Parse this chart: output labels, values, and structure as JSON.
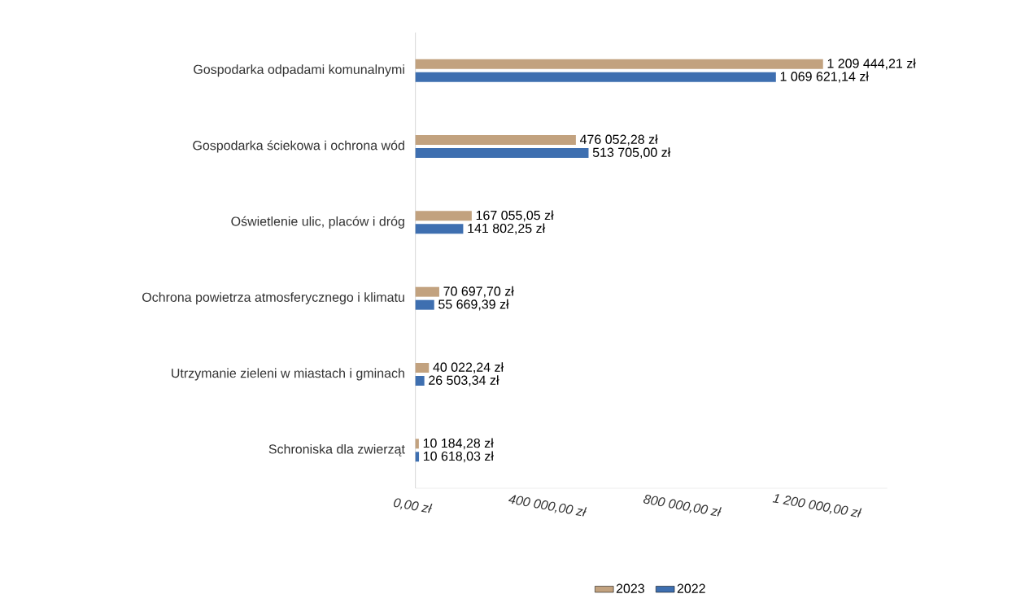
{
  "chart_data": {
    "type": "bar",
    "orientation": "horizontal",
    "categories": [
      "Gospodarka odpadami komunalnymi",
      "Gospodarka ściekowa i ochrona wód",
      "Oświetlenie ulic, placów i dróg",
      "Ochrona powietrza atmosferycznego i klimatu",
      "Utrzymanie zieleni w miastach i gminach",
      "Schroniska dla zwierząt"
    ],
    "series": [
      {
        "name": "2023",
        "color": "#c2a27f",
        "values": [
          1209444.21,
          476052.28,
          167055.05,
          70697.7,
          40022.24,
          10184.28
        ],
        "value_labels": [
          "1 209 444,21 zł",
          "476 052,28 zł",
          "167 055,05 zł",
          "70 697,70 zł",
          "40 022,24 zł",
          "10 184,28 zł"
        ]
      },
      {
        "name": "2022",
        "color": "#3e6fb0",
        "values": [
          1069621.14,
          513705.0,
          141802.25,
          55669.39,
          26503.34,
          10618.03
        ],
        "value_labels": [
          "1 069 621,14 zł",
          "513 705,00 zł",
          "141 802,25 zł",
          "55 669,39 zł",
          "26 503,34 zł",
          "10 618,03 zł"
        ]
      }
    ],
    "xlim": [
      0,
      1400000
    ],
    "xticks": [
      {
        "value": 0,
        "label": "0,00 zł"
      },
      {
        "value": 400000,
        "label": "400 000,00 zł"
      },
      {
        "value": 800000,
        "label": "800 000,00 zł"
      },
      {
        "value": 1200000,
        "label": "1 200 000,00 zł"
      }
    ],
    "legend": "bottom",
    "grid": false
  }
}
